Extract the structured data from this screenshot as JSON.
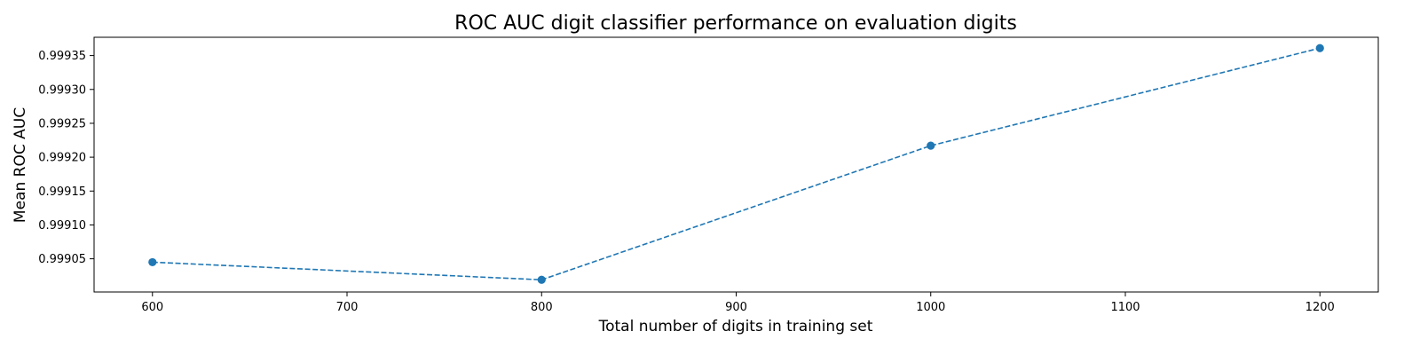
{
  "chart_data": {
    "type": "line",
    "title": "ROC AUC digit classifier performance on evaluation digits",
    "xlabel": "Total number of digits in training set",
    "ylabel": "Mean ROC AUC",
    "x": [
      600,
      800,
      1000,
      1200
    ],
    "series": [
      {
        "values": [
          0.999045,
          0.999019,
          0.999217,
          0.999361
        ]
      }
    ],
    "xlim": [
      570,
      1230
    ],
    "ylim": [
      0.999001,
      0.999377
    ],
    "xticks": [
      "600",
      "700",
      "800",
      "900",
      "1000",
      "1100",
      "1200"
    ],
    "yticks": [
      "0.99905",
      "0.99910",
      "0.99915",
      "0.99920",
      "0.99925",
      "0.99930",
      "0.99935"
    ],
    "line_style": "dashed",
    "marker": "circle",
    "color": "#1f77b4",
    "grid": false
  }
}
